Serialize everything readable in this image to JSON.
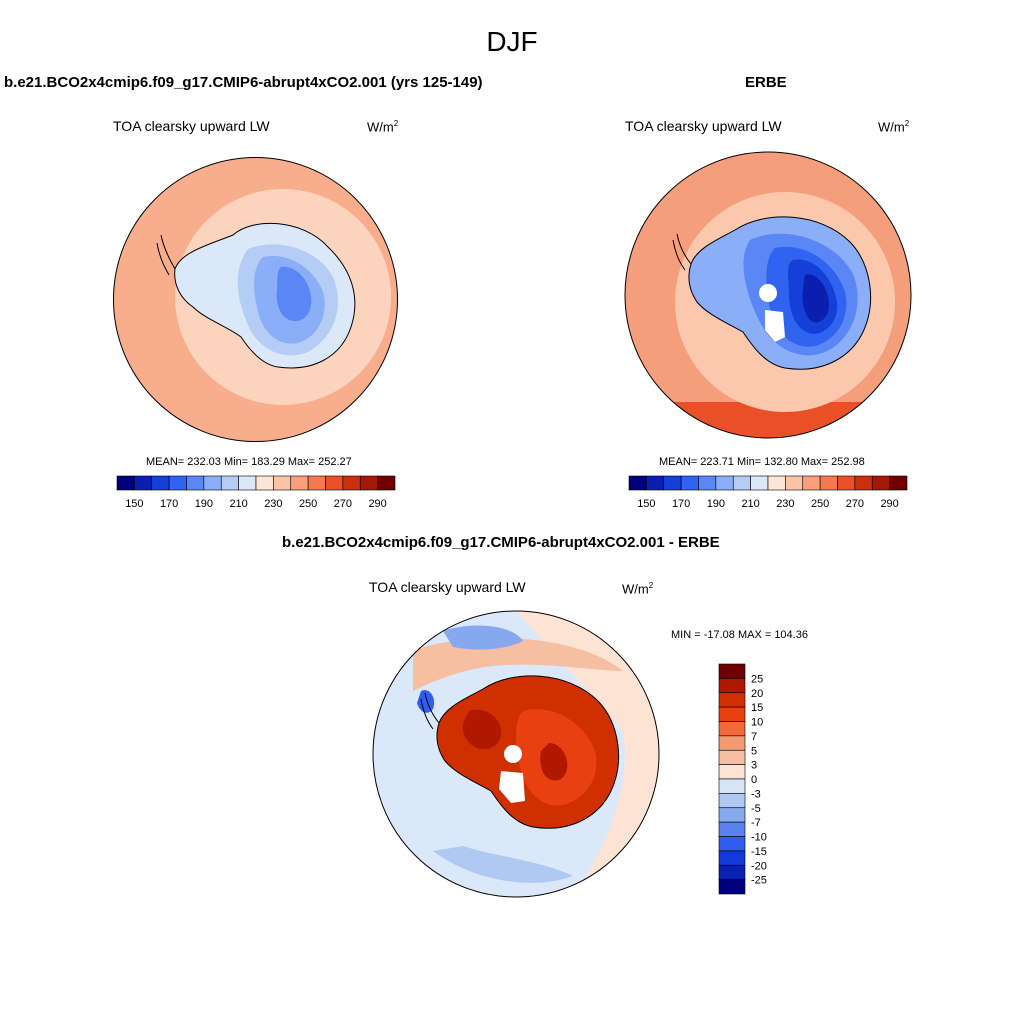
{
  "page_title": "DJF",
  "panels": [
    {
      "title": "b.e21.BCO2x4cmip6.f09_g17.CMIP6-abrupt4xCO2.001 (yrs 125-149)",
      "variable": "TOA clearsky upward LW",
      "units": "W/m",
      "units_exp": "2",
      "stats": "MEAN= 232.03  Min= 183.29  Max= 252.27"
    },
    {
      "title": "ERBE",
      "variable": "TOA clearsky upward LW",
      "units": "W/m",
      "units_exp": "2",
      "stats": "MEAN= 223.71  Min= 132.80  Max= 252.98"
    }
  ],
  "diff_panel": {
    "title": "b.e21.BCO2x4cmip6.f09_g17.CMIP6-abrupt4xCO2.001 - ERBE",
    "variable": "TOA clearsky upward LW",
    "units": "W/m",
    "units_exp": "2",
    "stats": "MIN = -17.08 MAX = 104.36"
  },
  "colorbar_main": {
    "colors": [
      "#00007f",
      "#0a1fb0",
      "#1540d8",
      "#2f63f0",
      "#5a87f5",
      "#8aaef7",
      "#b5ccf5",
      "#dbe8fa",
      "#fde5d6",
      "#fcc3a8",
      "#f9a07b",
      "#f47a50",
      "#ea5028",
      "#c8300f",
      "#a01a06",
      "#700000"
    ],
    "tick_labels": [
      "150",
      "170",
      "190",
      "210",
      "230",
      "250",
      "270",
      "290"
    ]
  },
  "colorbar_diff": {
    "colors": [
      "#700000",
      "#b01800",
      "#d03000",
      "#e84010",
      "#f06a3a",
      "#f49a72",
      "#f7bfa2",
      "#fde3d3",
      "#d7e6f7",
      "#b0c9f2",
      "#86a8ef",
      "#5a82ee",
      "#2f5df0",
      "#1538d8",
      "#0a20b0",
      "#000080"
    ],
    "tick_labels": [
      "25",
      "20",
      "15",
      "10",
      "7",
      "5",
      "3",
      "0",
      "-3",
      "-5",
      "-7",
      "-10",
      "-15",
      "-20",
      "-25"
    ]
  },
  "maps": {
    "model": {
      "ocean_color": "#f8ad8d",
      "ring_color": "#fcd3bd",
      "land_colors": [
        "#dbe8fa",
        "#b5ccf5",
        "#8aaef7",
        "#5a87f5"
      ]
    },
    "obs": {
      "ocean_color": "#f59e7c",
      "ring_color": "#fcc8ad",
      "land_colors": [
        "#8aaef7",
        "#5a87f5",
        "#2f63f0",
        "#1540d8",
        "#0a1fb0"
      ]
    },
    "diff": {
      "ocean_color": "#dbe8fa",
      "land_colors": [
        "#b01800",
        "#d03000",
        "#e84010"
      ]
    }
  }
}
